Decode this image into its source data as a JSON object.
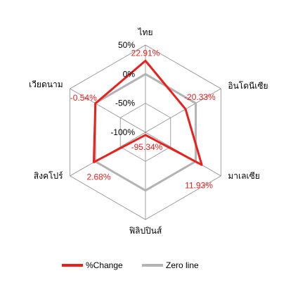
{
  "chart_data": {
    "type": "radar",
    "title": "",
    "categories": [
      "ไทย",
      "อินโดนีเซีย",
      "มาเลเซีย",
      "ฟิลิปปินส์",
      "สิงคโปร์",
      "เวียดนาม"
    ],
    "rlim": [
      -100,
      50
    ],
    "ticks": [
      {
        "value": 50,
        "label": "50%"
      },
      {
        "value": 0,
        "label": "0%"
      },
      {
        "value": -50,
        "label": "-50%"
      },
      {
        "value": -100,
        "label": "-100%"
      }
    ],
    "series": [
      {
        "name": "%Change",
        "color": "#e8211d",
        "values": [
          22.91,
          -20.33,
          11.93,
          -95.34,
          2.68,
          -0.54
        ],
        "labels": [
          "22.91%",
          "-20.33%",
          "11.93%",
          "-95.34%",
          "2.68%",
          "-0.54%"
        ]
      },
      {
        "name": "Zero line",
        "color": "#b3b3b3",
        "values": [
          0,
          0,
          0,
          0,
          0,
          0
        ]
      }
    ],
    "grid": true,
    "legend_position": "bottom"
  }
}
